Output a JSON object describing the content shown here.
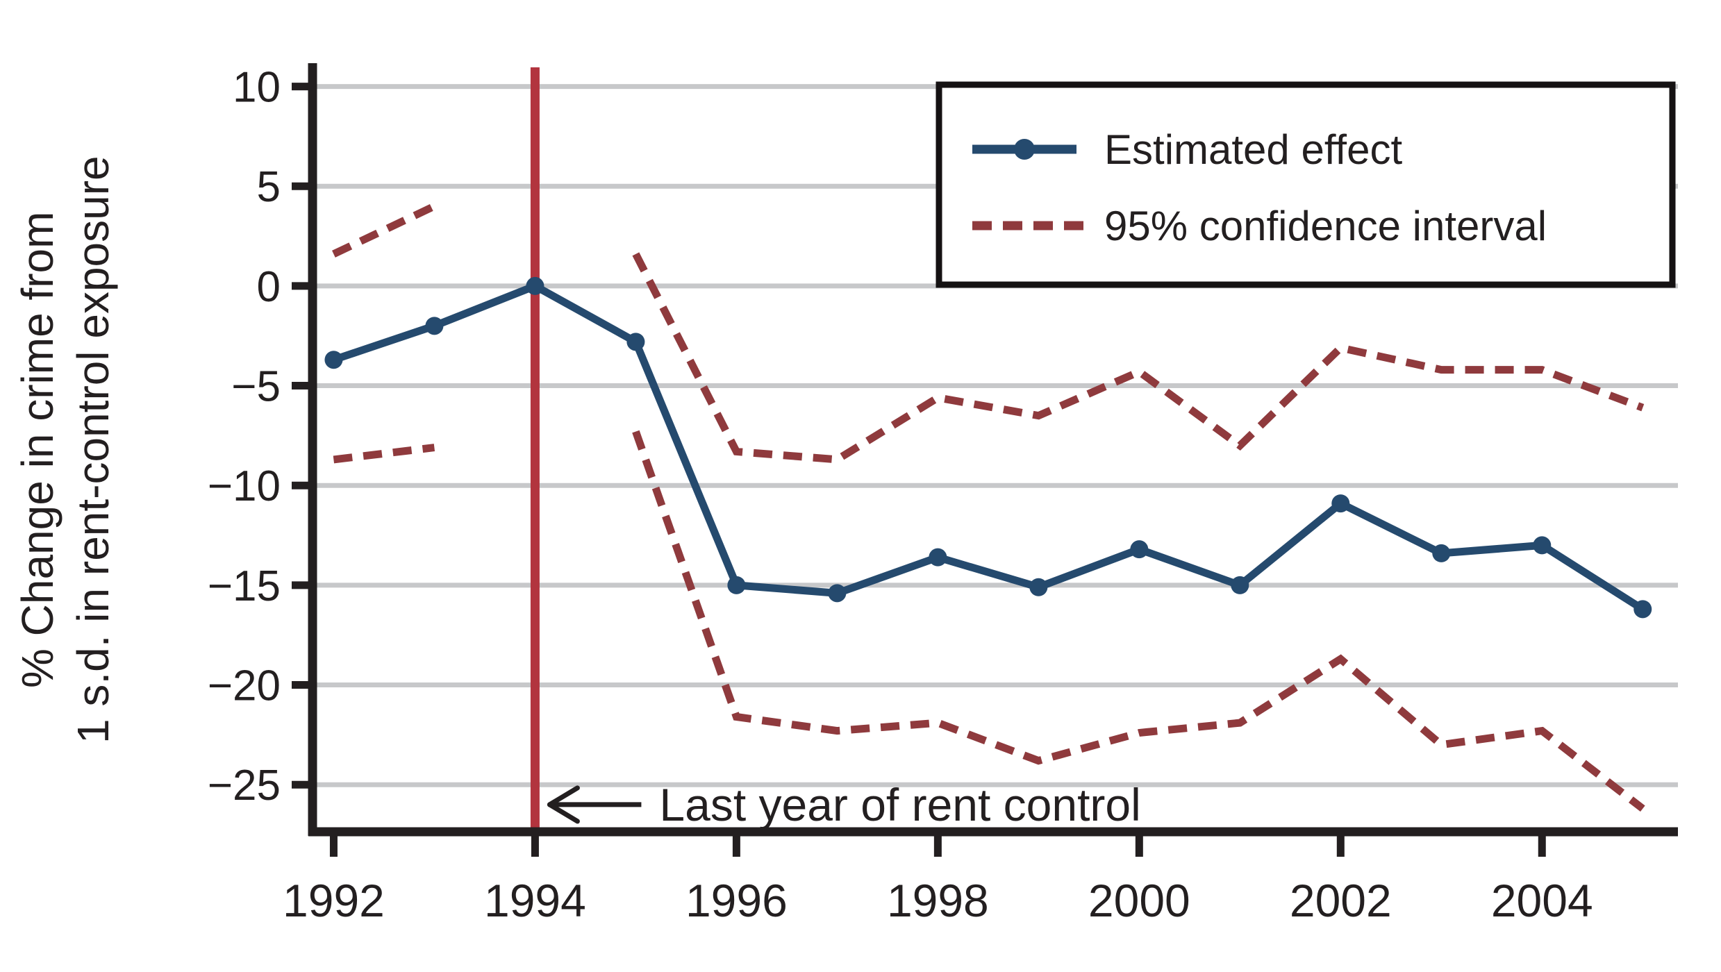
{
  "figure": {
    "background": "#ffffff"
  },
  "chart_data": {
    "type": "line",
    "title": "",
    "ylabel_lines": [
      "% Change in crime from",
      "1 s.d. in rent-control exposure"
    ],
    "xlabel": "",
    "years": [
      1992,
      1993,
      1994,
      1995,
      1996,
      1997,
      1998,
      1999,
      2000,
      2001,
      2002,
      2003,
      2004,
      2005
    ],
    "series": [
      {
        "id": "estimated_effect",
        "label": "Estimated effect",
        "style": "solid_marker",
        "values": [
          -3.7,
          -2.0,
          0.0,
          -2.8,
          -15.0,
          -15.4,
          -13.6,
          -15.1,
          -13.2,
          -15.0,
          -10.9,
          -13.4,
          -13.0,
          -16.2
        ]
      },
      {
        "id": "ci_upper",
        "label": "95% confidence interval",
        "style": "dashed",
        "values": [
          1.6,
          4.0,
          null,
          1.6,
          -8.3,
          -8.7,
          -5.6,
          -6.5,
          -4.3,
          -8.0,
          -3.1,
          -4.2,
          -4.2,
          -6.1
        ]
      },
      {
        "id": "ci_lower",
        "label": "95% confidence interval",
        "style": "dashed",
        "values": [
          -8.7,
          -8.1,
          null,
          -7.3,
          -21.6,
          -22.3,
          -21.9,
          -23.8,
          -22.4,
          -21.9,
          -18.7,
          -23.0,
          -22.3,
          -26.2
        ]
      }
    ],
    "legend": {
      "position": "top-right",
      "entries": [
        {
          "label": "Estimated effect",
          "swatch": "solid_marker"
        },
        {
          "label": "95% confidence interval",
          "swatch": "dashed"
        }
      ]
    },
    "reference_line": {
      "x": 1994
    },
    "annotation": {
      "text": "Last year of rent control",
      "arrow": "left",
      "points_to": 1994
    },
    "yticks": [
      10,
      5,
      0,
      -5,
      -10,
      -15,
      -20,
      -25
    ],
    "ytick_labels": [
      "10",
      "5",
      "0",
      "−5",
      "−10",
      "−15",
      "−20",
      "−25"
    ],
    "xticks": [
      1992,
      1994,
      1996,
      1998,
      2000,
      2002,
      2004
    ],
    "xtick_labels": [
      "1992",
      "1994",
      "1996",
      "1998",
      "2000",
      "2002",
      "2004"
    ],
    "xlim": [
      1991.79,
      2005.35
    ],
    "ylim": [
      -27.36,
      10.96
    ],
    "grid": "horizontal",
    "colors": {
      "effect": "#254a6e",
      "ci": "#8f3a3d",
      "reference": "#b2343e",
      "grid": "#c7c8ca",
      "axis": "#231f20",
      "text": "#231f20",
      "legend_border": "#151213",
      "background": "#ffffff"
    }
  }
}
